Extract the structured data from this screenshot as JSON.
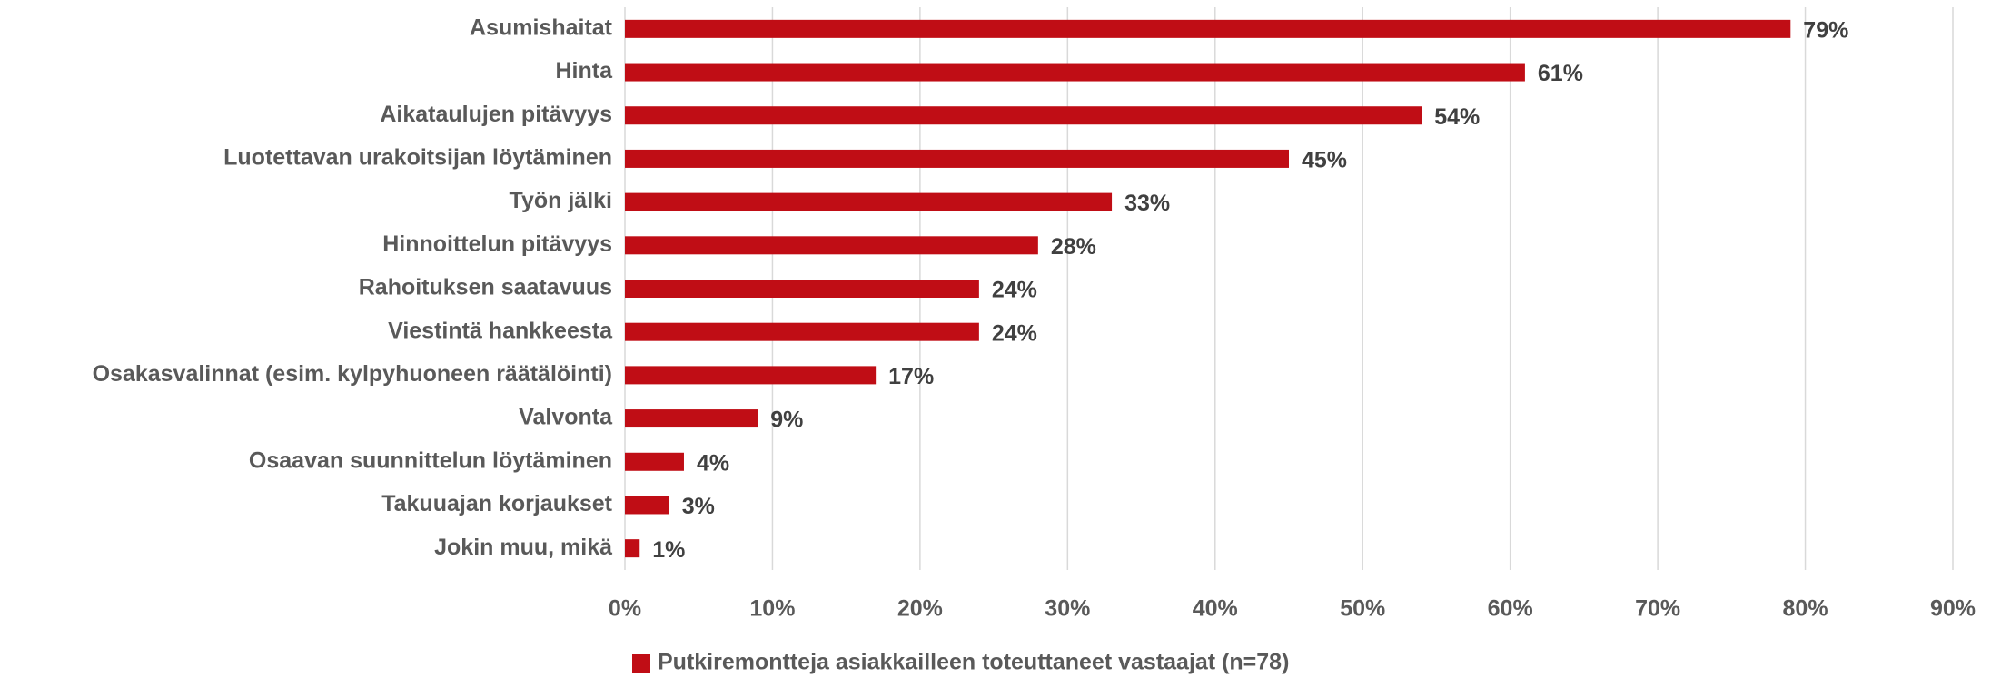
{
  "chart_data": {
    "type": "bar",
    "orientation": "horizontal",
    "categories": [
      "Asumishaitat",
      "Hinta",
      "Aikataulujen pitävyys",
      "Luotettavan urakoitsijan löytäminen",
      "Työn jälki",
      "Hinnoittelun pitävyys",
      "Rahoituksen saatavuus",
      "Viestintä hankkeesta",
      "Osakasvalinnat (esim. kylpyhuoneen räätälöinti)",
      "Valvonta",
      "Osaavan suunnittelun löytäminen",
      "Takuuajan korjaukset",
      "Jokin muu, mikä"
    ],
    "series": [
      {
        "name": "Putkiremontteja asiakkailleen toteuttaneet vastaajat (n=78)",
        "color": "#c00d15",
        "values": [
          79,
          61,
          54,
          45,
          33,
          28,
          24,
          24,
          17,
          9,
          4,
          3,
          1
        ],
        "value_labels": [
          "79%",
          "61%",
          "54%",
          "45%",
          "33%",
          "28%",
          "24%",
          "24%",
          "17%",
          "9%",
          "4%",
          "3%",
          "1%"
        ]
      }
    ],
    "xlim": [
      0,
      90
    ],
    "xticks": [
      {
        "value": 0,
        "label": "0%"
      },
      {
        "value": 10,
        "label": "10%"
      },
      {
        "value": 20,
        "label": "20%"
      },
      {
        "value": 30,
        "label": "30%"
      },
      {
        "value": 40,
        "label": "40%"
      },
      {
        "value": 50,
        "label": "50%"
      },
      {
        "value": 60,
        "label": "60%"
      },
      {
        "value": 70,
        "label": "70%"
      },
      {
        "value": 80,
        "label": "80%"
      },
      {
        "value": 90,
        "label": "90%"
      }
    ],
    "grid": true,
    "legend": "bottom"
  }
}
